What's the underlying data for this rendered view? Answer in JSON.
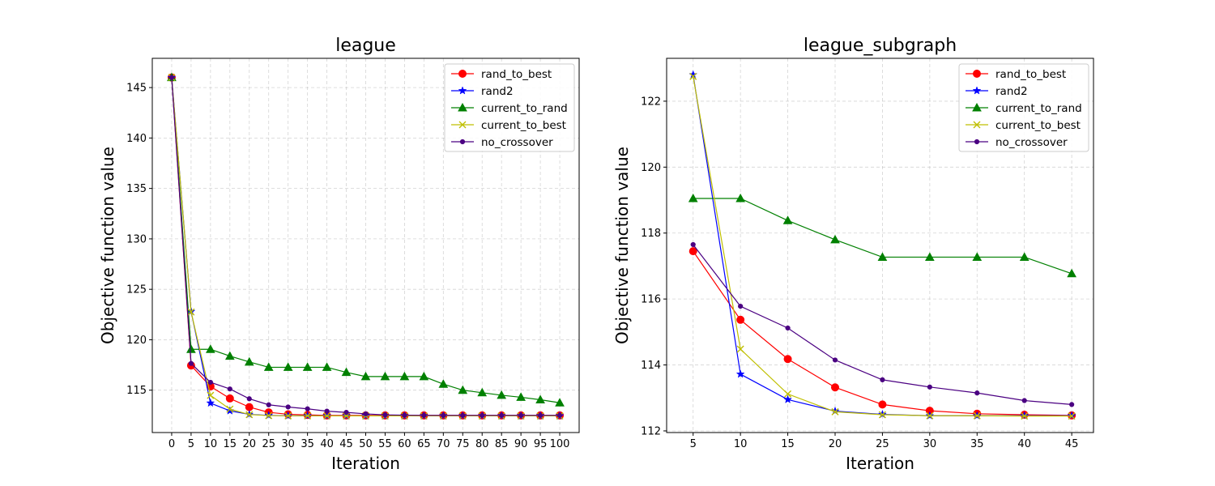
{
  "chart_data": [
    {
      "type": "line",
      "title": "league",
      "xlabel": "Iteration",
      "ylabel": "Objective function value",
      "xlim": [
        -5,
        105
      ],
      "ylim": [
        110.8,
        147.9
      ],
      "xticks": [
        0,
        5,
        10,
        15,
        20,
        25,
        30,
        35,
        40,
        45,
        50,
        55,
        60,
        65,
        70,
        75,
        80,
        85,
        90,
        95,
        100
      ],
      "xtick_labels": [
        "0",
        "5",
        "10",
        "15",
        "20",
        "25",
        "30",
        "35",
        "40",
        "45",
        "50",
        "55",
        "60",
        "65",
        "70",
        "75",
        "80",
        "85",
        "90",
        "95",
        "100"
      ],
      "yticks": [
        115,
        120,
        125,
        130,
        135,
        140,
        145
      ],
      "ytick_labels": [
        "115",
        "120",
        "125",
        "130",
        "135",
        "140",
        "145"
      ],
      "grid": true,
      "legend_position": "top-right",
      "x": [
        0,
        5,
        10,
        15,
        20,
        25,
        30,
        35,
        40,
        45,
        50,
        55,
        60,
        65,
        70,
        75,
        80,
        85,
        90,
        95,
        100
      ],
      "series": [
        {
          "name": "rand_to_best",
          "color": "#ff0000",
          "marker": "circle",
          "values": [
            146.0,
            117.45,
            115.37,
            114.18,
            113.32,
            112.8,
            112.61,
            112.55,
            112.5,
            112.5,
            112.5,
            112.5,
            112.5,
            112.5,
            112.5,
            112.5,
            112.5,
            112.5,
            112.5,
            112.5,
            112.5
          ]
        },
        {
          "name": "rand2",
          "color": "#0000ff",
          "marker": "star",
          "values": [
            146.0,
            122.8,
            113.72,
            112.95,
            112.6,
            112.5,
            112.46,
            112.46,
            112.45,
            112.45,
            112.45,
            112.45,
            112.45,
            112.45,
            112.45,
            112.45,
            112.45,
            112.45,
            112.45,
            112.45,
            112.45
          ]
        },
        {
          "name": "current_to_rand",
          "color": "#008000",
          "marker": "triangle",
          "values": [
            146.0,
            119.05,
            119.05,
            118.38,
            117.8,
            117.27,
            117.27,
            117.27,
            117.27,
            116.77,
            116.35,
            116.35,
            116.35,
            116.35,
            115.6,
            115.0,
            114.75,
            114.5,
            114.3,
            114.05,
            113.75
          ]
        },
        {
          "name": "current_to_best",
          "color": "#bfbf00",
          "marker": "x",
          "values": [
            146.0,
            122.75,
            114.48,
            113.12,
            112.58,
            112.48,
            112.46,
            112.46,
            112.45,
            112.45,
            112.45,
            112.45,
            112.45,
            112.45,
            112.45,
            112.45,
            112.45,
            112.45,
            112.45,
            112.45,
            112.45
          ]
        },
        {
          "name": "no_crossover",
          "color": "#4b0082",
          "marker": "dot",
          "values": [
            146.0,
            117.65,
            115.78,
            115.12,
            114.15,
            113.55,
            113.33,
            113.15,
            112.92,
            112.8,
            112.65,
            112.55,
            112.52,
            112.5,
            112.5,
            112.5,
            112.5,
            112.5,
            112.5,
            112.5,
            112.5
          ]
        }
      ]
    },
    {
      "type": "line",
      "title": "league_subgraph",
      "xlabel": "Iteration",
      "ylabel": "Objective function value",
      "xlim": [
        2.2,
        47.3
      ],
      "ylim": [
        111.95,
        123.3
      ],
      "xticks": [
        5,
        10,
        15,
        20,
        25,
        30,
        35,
        40,
        45
      ],
      "xtick_labels": [
        "5",
        "10",
        "15",
        "20",
        "25",
        "30",
        "35",
        "40",
        "45"
      ],
      "yticks": [
        112,
        114,
        116,
        118,
        120,
        122
      ],
      "ytick_labels": [
        "112",
        "114",
        "116",
        "118",
        "120",
        "122"
      ],
      "grid": true,
      "legend_position": "top-right",
      "x": [
        5,
        10,
        15,
        20,
        25,
        30,
        35,
        40,
        45
      ],
      "series": [
        {
          "name": "rand_to_best",
          "color": "#ff0000",
          "marker": "circle",
          "values": [
            117.45,
            115.37,
            114.18,
            113.32,
            112.8,
            112.61,
            112.52,
            112.49,
            112.47
          ]
        },
        {
          "name": "rand2",
          "color": "#0000ff",
          "marker": "star",
          "values": [
            122.8,
            113.72,
            112.95,
            112.6,
            112.5,
            112.46,
            112.46,
            112.46,
            112.46
          ]
        },
        {
          "name": "current_to_rand",
          "color": "#008000",
          "marker": "triangle",
          "values": [
            119.05,
            119.05,
            118.38,
            117.8,
            117.27,
            117.27,
            117.27,
            117.27,
            116.77
          ]
        },
        {
          "name": "current_to_best",
          "color": "#bfbf00",
          "marker": "x",
          "values": [
            122.75,
            114.48,
            113.12,
            112.58,
            112.49,
            112.46,
            112.46,
            112.45,
            112.45
          ]
        },
        {
          "name": "no_crossover",
          "color": "#4b0082",
          "marker": "dot",
          "values": [
            117.65,
            115.78,
            115.12,
            114.15,
            113.55,
            113.33,
            113.15,
            112.92,
            112.8
          ]
        }
      ]
    }
  ]
}
